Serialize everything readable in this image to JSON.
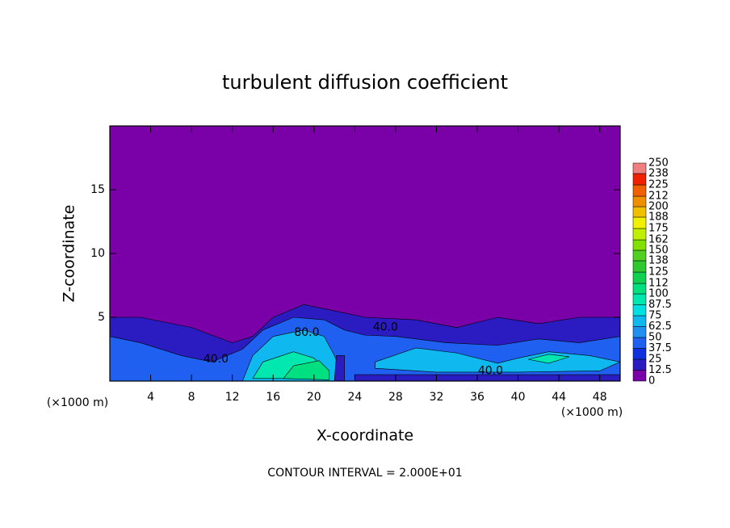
{
  "chart_data": {
    "type": "contour",
    "title": "turbulent diffusion coefficient",
    "x_label": "X-coordinate",
    "y_label": "Z-coordinate",
    "x_unit": "(×1000 m)",
    "y_unit": "(×1000 m)",
    "footer": "CONTOUR INTERVAL = 2.000E+01",
    "xlim": [
      0,
      50
    ],
    "xticks": [
      4,
      8,
      12,
      16,
      20,
      24,
      28,
      32,
      36,
      40,
      44,
      48
    ],
    "ylim": [
      0,
      20
    ],
    "yticks": [
      5,
      10,
      15
    ],
    "colorbar": {
      "levels": [
        0,
        12.5,
        25,
        37.5,
        50,
        62.5,
        75,
        87.5,
        100,
        112,
        125,
        138,
        150,
        162,
        175,
        188,
        200,
        212,
        225,
        238,
        250
      ],
      "colors": [
        "#7a00a8",
        "#2a1cc0",
        "#1030e0",
        "#2060f0",
        "#2090f0",
        "#10b8f0",
        "#00e0e0",
        "#00e8b0",
        "#00e080",
        "#10d050",
        "#30c830",
        "#50d020",
        "#80e000",
        "#c0f000",
        "#f0f000",
        "#f0c000",
        "#f09000",
        "#f06000",
        "#f02000",
        "#f08080"
      ]
    },
    "regions": [
      {
        "level": 12.5,
        "x": [
          0,
          0,
          3,
          8,
          12,
          14,
          16,
          19,
          22,
          25,
          30,
          34,
          38,
          42,
          46,
          50,
          50
        ],
        "z": [
          0,
          5,
          5,
          4.2,
          3,
          3.5,
          5,
          6,
          5.5,
          5,
          4.8,
          4.2,
          5,
          4.5,
          5,
          5,
          0
        ]
      },
      {
        "level": 37.5,
        "x": [
          0,
          0,
          3,
          7,
          10,
          13,
          15,
          18,
          21,
          23,
          25,
          28,
          33,
          38,
          42,
          46,
          50,
          50
        ],
        "z": [
          0,
          3.5,
          3,
          2,
          1.5,
          2.5,
          4,
          5,
          4.8,
          4,
          3.6,
          3.5,
          3,
          2.8,
          3.3,
          3,
          3.5,
          0
        ]
      },
      {
        "level": 62.5,
        "x": [
          13,
          14,
          16,
          19,
          21,
          22,
          23
        ],
        "z": [
          0,
          2,
          3.5,
          4,
          3.5,
          2,
          0
        ]
      },
      {
        "level": 62.5,
        "x": [
          26,
          30,
          34,
          38,
          40,
          43,
          47,
          50,
          48,
          40,
          32,
          26
        ],
        "z": [
          1.5,
          2.6,
          2.2,
          1.4,
          1.8,
          2.3,
          2,
          1.5,
          0.8,
          0.7,
          0.7,
          1.0
        ]
      },
      {
        "level": 87.5,
        "x": [
          14,
          15,
          18,
          20,
          21,
          21.5
        ],
        "z": [
          0.2,
          1.5,
          2.3,
          1.8,
          1,
          0.2
        ]
      },
      {
        "level": 87.5,
        "x": [
          41,
          43,
          45,
          43
        ],
        "z": [
          1.7,
          2.1,
          1.9,
          1.4
        ]
      },
      {
        "level": 100,
        "x": [
          17,
          18,
          20.5,
          21.5,
          21.5
        ],
        "z": [
          0.2,
          1.2,
          1.6,
          0.8,
          0.1
        ]
      },
      {
        "level": 12.5,
        "x": [
          22,
          22.2,
          23,
          23
        ],
        "z": [
          0,
          2,
          2,
          0
        ]
      },
      {
        "level": 12.5,
        "x": [
          24,
          50,
          50,
          24
        ],
        "z": [
          0,
          0,
          0.5,
          0.5
        ]
      }
    ],
    "contour_labels": [
      {
        "level": 40,
        "label": "40.0",
        "x": 10.4,
        "z": 1.7
      },
      {
        "level": 80,
        "label": "80.0",
        "x": 19.3,
        "z": 3.8
      },
      {
        "level": 40,
        "label": "40.0",
        "x": 27.0,
        "z": 4.2
      },
      {
        "level": 40,
        "label": "40.0",
        "x": 37.3,
        "z": 0.8
      }
    ]
  }
}
